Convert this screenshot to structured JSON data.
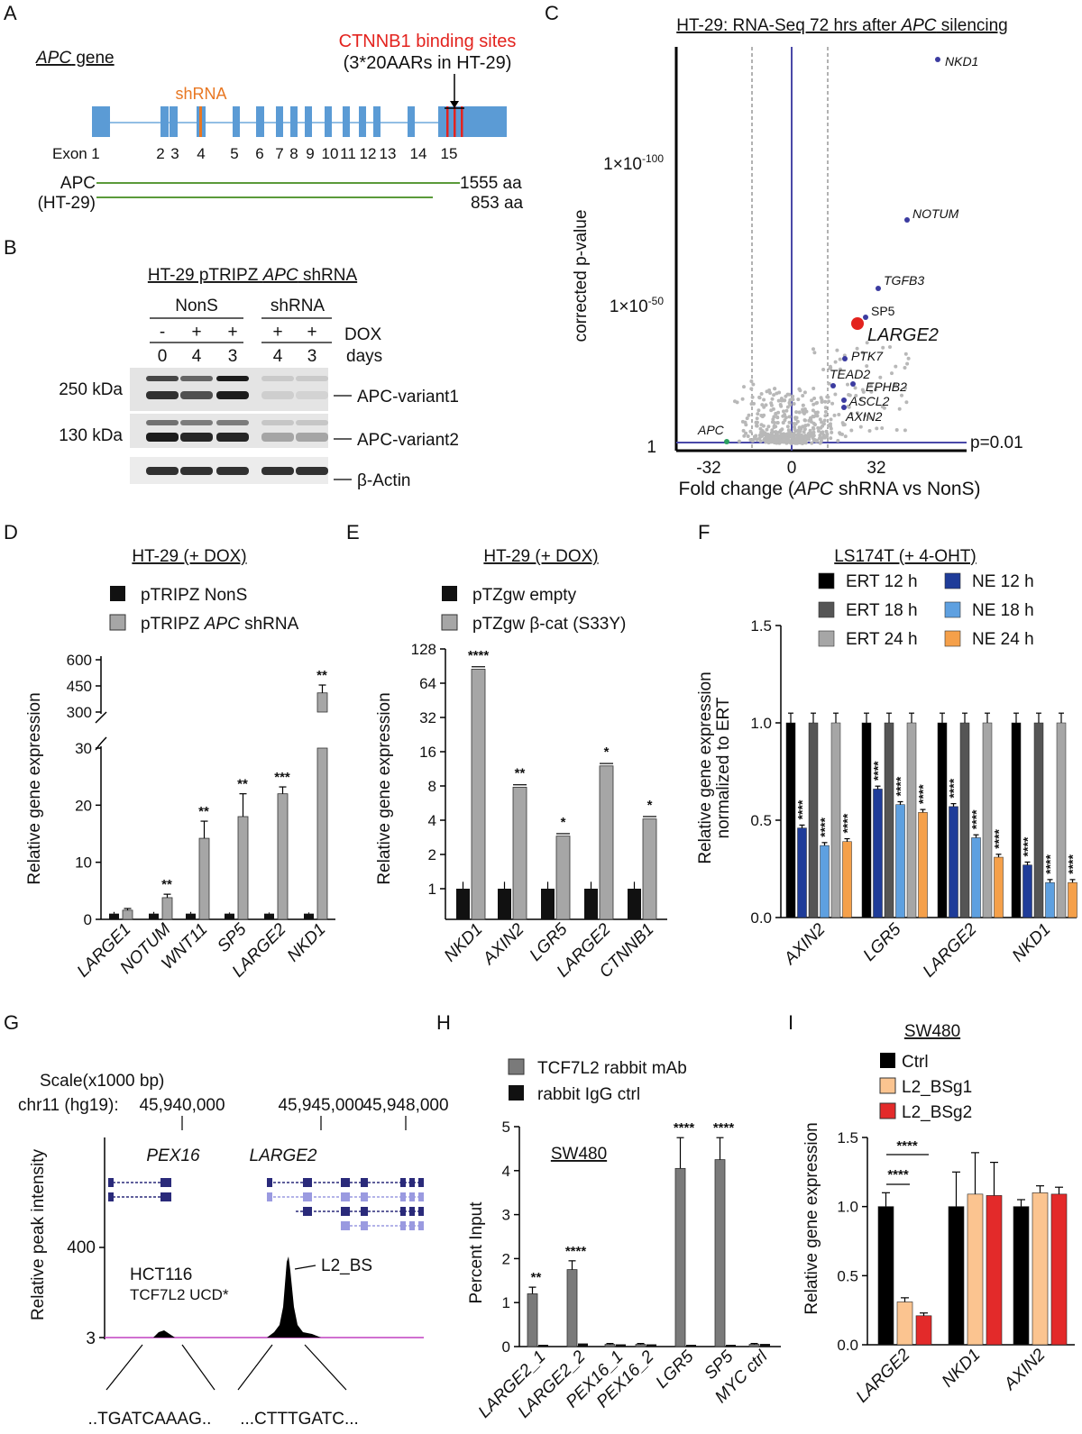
{
  "panel_letters": {
    "a": "A",
    "b": "B",
    "c": "C",
    "d": "D",
    "e": "E",
    "f": "F",
    "g": "G",
    "h": "H",
    "i": "I"
  },
  "panelA": {
    "gene_prefix": "APC",
    "gene_suffix": " gene",
    "binding_title": "CTNNB1 binding sites",
    "binding_sub": "(3*20AARs in HT-29)",
    "shrna": "shRNA",
    "exon_prefix": "Exon",
    "exons": [
      "1",
      "2",
      "3",
      "4",
      "5",
      "6",
      "7",
      "8",
      "9",
      "10",
      "11",
      "12",
      "13",
      "14",
      "15"
    ],
    "protein1": "APC",
    "protein1_len": "1555 aa",
    "protein2": "(HT-29)",
    "protein2_len": "853 aa"
  },
  "panelB": {
    "title_prefix": "HT-29 pTRIPZ ",
    "title_gene": "APC",
    "title_suffix": " shRNA",
    "group1": "NonS",
    "group2": "shRNA",
    "dox_signs": [
      "-",
      "+",
      "+",
      "+",
      "+"
    ],
    "days": [
      "0",
      "4",
      "3",
      "4",
      "3"
    ],
    "dox_label": "DOX",
    "days_label": "days",
    "mw1": "250 kDa",
    "mw2": "130 kDa",
    "band1": "APC-variant1",
    "band2": "APC-variant2",
    "band3": "β-Actin"
  },
  "panelC": {
    "title_prefix": "HT-29: RNA-Seq 72 hrs after ",
    "title_gene": "APC",
    "title_suffix": " silencing",
    "ylabel": "corrected p-value",
    "xlabel_prefix": "Fold change (",
    "xlabel_gene": "APC",
    "xlabel_suffix": " shRNA  vs NonS)",
    "yticks": [
      "1×10",
      "1×10",
      "1"
    ],
    "yexp": [
      "-100",
      "-50"
    ],
    "xticks": [
      "-32",
      "0",
      "32"
    ],
    "pline": "p=0.01",
    "genes": [
      "NKD1",
      "NOTUM",
      "TGFB3",
      "SP5",
      "LARGE2",
      "PTK7",
      "TEAD2",
      "EPHB2",
      "ASCL2",
      "AXIN2",
      "APC"
    ]
  },
  "panelD": {
    "title": "HT-29 (+ DOX)",
    "legend": [
      "pTRIPZ NonS",
      "pTRIPZ "
    ],
    "legend_gene": "APC",
    "legend_tail": " shRNA",
    "ylabel": "Relative gene expression",
    "yticks_low": [
      "0",
      "10",
      "20",
      "30"
    ],
    "yticks_high": [
      "300",
      "450",
      "600"
    ],
    "chart_data": {
      "type": "bar",
      "categories": [
        "LARGE1",
        "NOTUM",
        "WNT11",
        "SP5",
        "LARGE2",
        "NKD1"
      ],
      "series": [
        {
          "name": "pTRIPZ NonS",
          "values": [
            1,
            1,
            1,
            1,
            1,
            1
          ]
        },
        {
          "name": "pTRIPZ APC shRNA",
          "values": [
            1.6,
            3.8,
            14.2,
            18,
            22,
            410
          ]
        }
      ],
      "errors": [
        [
          0.3,
          0.3,
          0.3,
          0.2,
          0.2,
          0.2
        ],
        [
          0.3,
          0.6,
          3,
          4,
          1.2,
          45
        ]
      ],
      "significance": [
        "",
        "**",
        "**",
        "**",
        "***",
        "**"
      ],
      "ylim": [
        0,
        600
      ],
      "axis_break": [
        30,
        300
      ]
    }
  },
  "panelE": {
    "title": "HT-29 (+ DOX)",
    "legend": [
      "pTZgw empty",
      "pTZgw β-cat (S33Y)"
    ],
    "ylabel": "Relative gene expression",
    "yticks": [
      "1",
      "2",
      "4",
      "8",
      "16",
      "32",
      "64",
      "128"
    ],
    "chart_data": {
      "type": "bar",
      "categories": [
        "NKD1",
        "AXIN2",
        "LGR5",
        "LARGE2",
        "CTNNB1"
      ],
      "series": [
        {
          "name": "pTZgw empty",
          "values": [
            1,
            1,
            1,
            1,
            1
          ]
        },
        {
          "name": "pTZgw β-cat (S33Y)",
          "values": [
            85,
            7.8,
            2.9,
            12,
            4.1
          ]
        }
      ],
      "significance": [
        "****",
        "**",
        "*",
        "*",
        "*"
      ],
      "scale": "log2",
      "ylim": [
        0.5,
        128
      ]
    }
  },
  "panelF": {
    "title": "LS174T (+ 4-OHT)",
    "legend": [
      "ERT 12 h",
      "ERT 18 h",
      "ERT 24 h",
      "NE 12 h",
      "NE 18 h",
      "NE 24 h"
    ],
    "ylabel1": "Relative gene expression",
    "ylabel2": "normalized to ERT",
    "yticks": [
      "0.0",
      "0.5",
      "1.0",
      "1.5"
    ],
    "sig": "****",
    "colors": [
      "#000000",
      "#555555",
      "#a6a6a6",
      "#1f3c99",
      "#5ea0e0",
      "#f5a04a"
    ],
    "chart_data": {
      "type": "bar",
      "categories": [
        "AXIN2",
        "LGR5",
        "LARGE2",
        "NKD1"
      ],
      "series_order": [
        "ERT 12 h",
        "NE 12 h",
        "ERT 18 h",
        "NE 18 h",
        "ERT 24 h",
        "NE 24 h"
      ],
      "values": [
        [
          1,
          0.46,
          1,
          0.37,
          1,
          0.39
        ],
        [
          1,
          0.66,
          1,
          0.58,
          1,
          0.54
        ],
        [
          1,
          0.57,
          1,
          0.41,
          1,
          0.31
        ],
        [
          1,
          0.27,
          1,
          0.18,
          1,
          0.18
        ]
      ],
      "ylim": [
        0,
        1.5
      ]
    }
  },
  "panelG": {
    "scale": "Scale(x1000 bp)",
    "chr": "chr11 (hg19):",
    "coords": [
      "45,940,000",
      "45,945,000",
      "45,948,000"
    ],
    "gene1": "PEX16",
    "gene2": "LARGE2",
    "ylabel": "Relative peak intensity",
    "yticks": [
      "400",
      "3"
    ],
    "cell": "HCT116",
    "factor": "TCF7L2 UCD*",
    "peak": "L2_BS",
    "seq1": "..TGATCAAAG..",
    "seq2": "...CTTTGATC..."
  },
  "panelH": {
    "legend": [
      "TCF7L2 rabbit mAb",
      "rabbit IgG ctrl"
    ],
    "cell": "SW480",
    "ylabel": "Percent Input",
    "yticks": [
      "0",
      "1",
      "2",
      "3",
      "4",
      "5"
    ],
    "chart_data": {
      "type": "bar",
      "categories": [
        "LARGE2_1",
        "LARGE2_2",
        "PEX16_1",
        "PEX16_2",
        "LGR5",
        "SP5",
        "MYC ctrl"
      ],
      "series": [
        {
          "name": "TCF7L2 rabbit mAb",
          "values": [
            1.2,
            1.75,
            0.05,
            0.05,
            4.05,
            4.25,
            0.05
          ]
        },
        {
          "name": "rabbit IgG ctrl",
          "values": [
            0.02,
            0.05,
            0.03,
            0.03,
            0.02,
            0.02,
            0.04
          ]
        }
      ],
      "errors": [
        0.15,
        0.2,
        0.02,
        0.02,
        0.7,
        0.5,
        0.02
      ],
      "significance": [
        "**",
        "****",
        "",
        "",
        "****",
        "****",
        ""
      ],
      "ylim": [
        0,
        5
      ]
    }
  },
  "panelI": {
    "title": "SW480",
    "legend": [
      "Ctrl",
      "L2_BSg1",
      "L2_BSg2"
    ],
    "ylabel": "Relative gene expression",
    "yticks": [
      "0.0",
      "0.5",
      "1.0",
      "1.5"
    ],
    "sig": "****",
    "chart_data": {
      "type": "bar",
      "categories": [
        "LARGE2",
        "NKD1",
        "AXIN2"
      ],
      "series": [
        {
          "name": "Ctrl",
          "values": [
            1,
            1,
            1
          ]
        },
        {
          "name": "L2_BSg1",
          "values": [
            0.31,
            1.09,
            1.1
          ]
        },
        {
          "name": "L2_BSg2",
          "values": [
            0.21,
            1.08,
            1.09
          ]
        }
      ],
      "errors": [
        [
          0.1,
          0.25,
          0.05
        ],
        [
          0.03,
          0.3,
          0.05
        ],
        [
          0.02,
          0.24,
          0.05
        ]
      ],
      "ylim": [
        0,
        1.5
      ]
    }
  }
}
